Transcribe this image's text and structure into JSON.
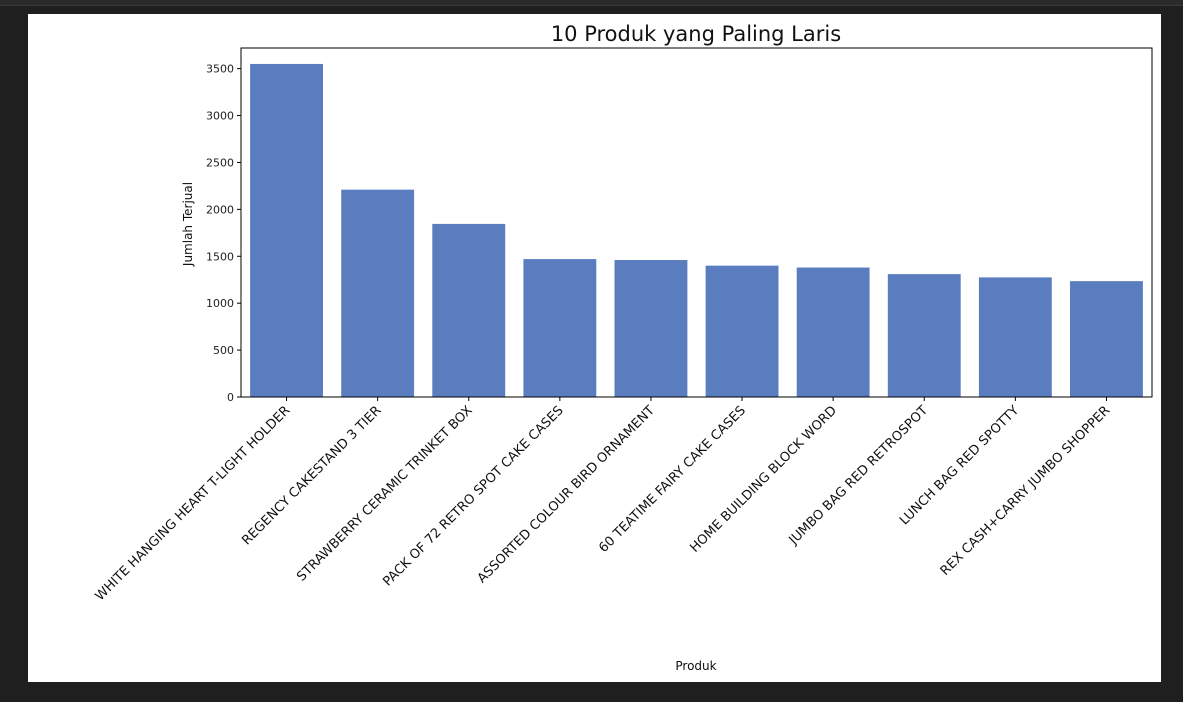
{
  "chart_data": {
    "type": "bar",
    "title": "10 Produk yang Paling Laris",
    "xlabel": "Produk",
    "ylabel": "Jumlah Terjual",
    "ylim": [
      0,
      3720
    ],
    "yticks": [
      0,
      500,
      1000,
      1500,
      2000,
      2500,
      3000,
      3500
    ],
    "grid": false,
    "bar_color": "#5a7dc0",
    "categories": [
      "WHITE HANGING HEART T-LIGHT HOLDER",
      "REGENCY CAKESTAND 3 TIER",
      "STRAWBERRY CERAMIC TRINKET BOX",
      "PACK OF 72 RETRO SPOT CAKE CASES",
      "ASSORTED COLOUR BIRD ORNAMENT",
      "60 TEATIME FAIRY CAKE CASES",
      "HOME BUILDING BLOCK WORD",
      "JUMBO BAG RED RETROSPOT",
      "LUNCH BAG RED SPOTTY",
      "REX CASH+CARRY JUMBO SHOPPER"
    ],
    "values": [
      3550,
      2210,
      1845,
      1470,
      1460,
      1400,
      1380,
      1310,
      1275,
      1235
    ]
  }
}
